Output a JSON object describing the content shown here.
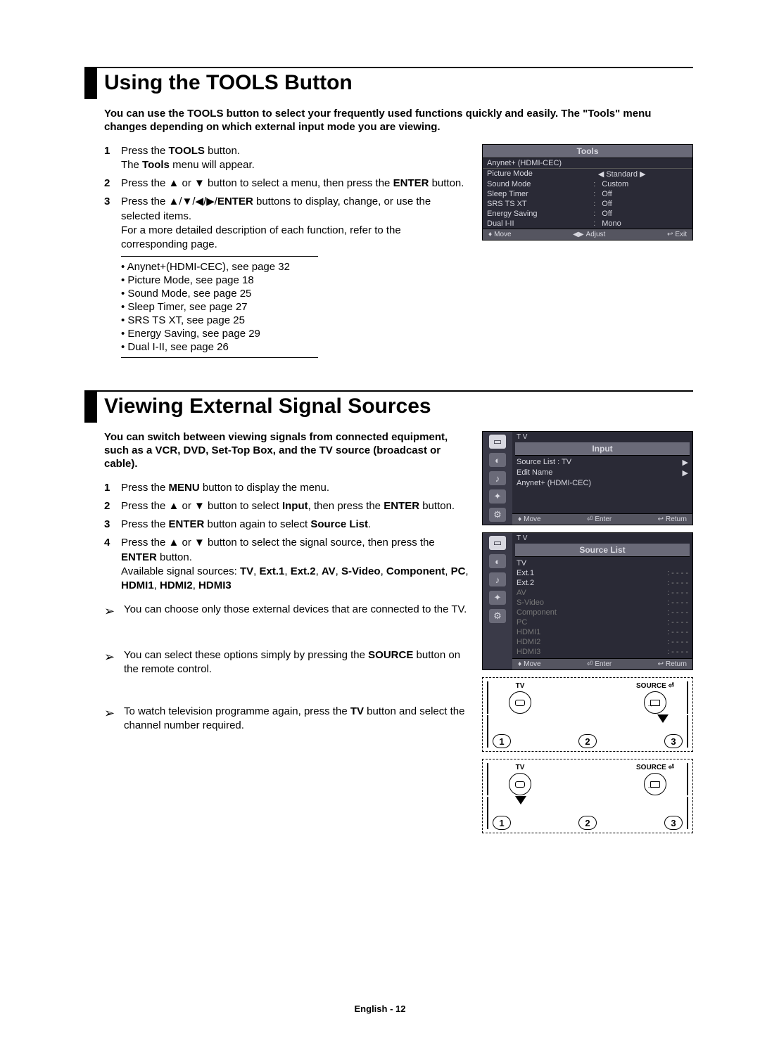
{
  "section1": {
    "title": "Using the TOOLS Button",
    "intro": "You can use the TOOLS button to select your frequently used functions quickly and easily. The \"Tools\" menu changes depending on which external input mode you are viewing.",
    "steps": [
      {
        "num": "1",
        "html": "Press the <b>TOOLS</b> button.<br>The <b>Tools</b> menu will appear."
      },
      {
        "num": "2",
        "html": "Press the ▲ or ▼ button to select a menu, then press the <b>ENTER</b> button."
      },
      {
        "num": "3",
        "html": "Press the ▲/▼/◀/▶/<b>ENTER</b> buttons to display, change, or use the selected items.<br>For a more detailed description of each function, refer to the corresponding page."
      }
    ],
    "refs": [
      "Anynet+(HDMI-CEC), see page 32",
      "Picture Mode, see page 18",
      "Sound Mode, see page 25",
      "Sleep Timer, see page 27",
      "SRS TS XT, see page 25",
      "Energy Saving, see page 29",
      "Dual I-II, see page 26"
    ],
    "osd": {
      "title": "Tools",
      "rows": [
        {
          "k": "Anynet+ (HDMI-CEC)",
          "v": ""
        },
        {
          "k": "Picture Mode",
          "v": "◀   Standard   ▶"
        },
        {
          "k": "Sound Mode",
          "v": "Custom"
        },
        {
          "k": "Sleep Timer",
          "v": "Off"
        },
        {
          "k": "SRS TS XT",
          "v": "Off"
        },
        {
          "k": "Energy Saving",
          "v": "Off"
        },
        {
          "k": "Dual I-II",
          "v": "Mono"
        }
      ],
      "foot": {
        "move": "Move",
        "adjust": "Adjust",
        "exit": "Exit"
      }
    }
  },
  "section2": {
    "title": "Viewing External Signal Sources",
    "intro": "You can switch between viewing signals from connected equipment, such as a VCR, DVD, Set-Top Box, and the TV source (broadcast or cable).",
    "steps": [
      {
        "num": "1",
        "html": "Press the <b>MENU</b> button to display the menu."
      },
      {
        "num": "2",
        "html": "Press the ▲ or ▼ button to select <b>Input</b>, then press the <b>ENTER</b> button."
      },
      {
        "num": "3",
        "html": "Press the <b>ENTER</b> button again to select <b>Source List</b>."
      },
      {
        "num": "4",
        "html": "Press the ▲ or ▼ button to select the signal source, then press the <b>ENTER</b> button.<br>Available signal sources: <b>TV</b>, <b>Ext.1</b>, <b>Ext.2</b>, <b>AV</b>, <b>S-Video</b>, <b>Component</b>, <b>PC</b>, <b>HDMI1</b>, <b>HDMI2</b>, <b>HDMI3</b>"
      }
    ],
    "notes": [
      "You can choose only those external devices that are connected to the TV.",
      "You can select these options simply by pressing the <b>SOURCE</b> button on the remote control.",
      "To watch television programme again, press the <b>TV</b> button and select the channel number required."
    ],
    "osd_input": {
      "tv": "T V",
      "title": "Input",
      "rows": [
        {
          "k": "Source List",
          "v": ": TV",
          "arrow": true
        },
        {
          "k": "Edit Name",
          "v": "",
          "arrow": true
        },
        {
          "k": "Anynet+ (HDMI-CEC)",
          "v": "",
          "arrow": false
        }
      ],
      "foot": {
        "move": "Move",
        "enter": "Enter",
        "return": "Return"
      }
    },
    "osd_source": {
      "tv": "T V",
      "title": "Source List",
      "rows": [
        {
          "k": "TV",
          "dim": false
        },
        {
          "k": "Ext.1",
          "dim": false,
          "dash": true
        },
        {
          "k": "Ext.2",
          "dim": false,
          "dash": true
        },
        {
          "k": "AV",
          "dim": true,
          "dash": true
        },
        {
          "k": "S-Video",
          "dim": true,
          "dash": true
        },
        {
          "k": "Component",
          "dim": true,
          "dash": true
        },
        {
          "k": "PC",
          "dim": true,
          "dash": true
        },
        {
          "k": "HDMI1",
          "dim": true,
          "dash": true
        },
        {
          "k": "HDMI2",
          "dim": true,
          "dash": true
        },
        {
          "k": "HDMI3",
          "dim": true,
          "dash": true
        }
      ],
      "foot": {
        "move": "Move",
        "enter": "Enter",
        "return": "Return"
      }
    },
    "remote": {
      "tv": "TV",
      "source": "SOURCE",
      "nums": [
        "1",
        "2",
        "3"
      ]
    }
  },
  "footer": "English - 12",
  "colors": {
    "osd_bg": "#2a2a36",
    "osd_title": "#6a6a78",
    "osd_text": "#d8d8e0"
  }
}
